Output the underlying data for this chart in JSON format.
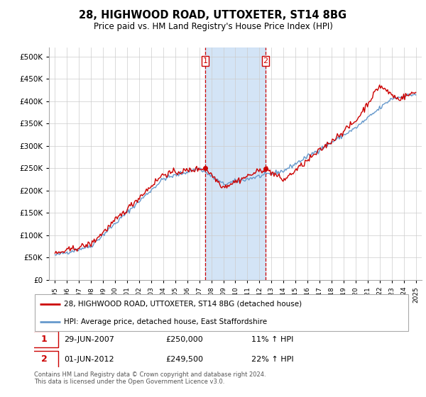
{
  "title": "28, HIGHWOOD ROAD, UTTOXETER, ST14 8BG",
  "subtitle": "Price paid vs. HM Land Registry's House Price Index (HPI)",
  "legend_line1": "28, HIGHWOOD ROAD, UTTOXETER, ST14 8BG (detached house)",
  "legend_line2": "HPI: Average price, detached house, East Staffordshire",
  "sale1_date": "29-JUN-2007",
  "sale1_price": "£250,000",
  "sale1_hpi": "11% ↑ HPI",
  "sale2_date": "01-JUN-2012",
  "sale2_price": "£249,500",
  "sale2_hpi": "22% ↑ HPI",
  "footer": "Contains HM Land Registry data © Crown copyright and database right 2024.\nThis data is licensed under the Open Government Licence v3.0.",
  "red_color": "#cc0000",
  "blue_color": "#6699cc",
  "shade_color": "#cce0f5",
  "background_color": "#ffffff",
  "grid_color": "#cccccc",
  "ylim": [
    0,
    520000
  ],
  "yticks": [
    0,
    50000,
    100000,
    150000,
    200000,
    250000,
    300000,
    350000,
    400000,
    450000,
    500000
  ],
  "sale1_x": 2007.5,
  "sale2_x": 2012.5
}
